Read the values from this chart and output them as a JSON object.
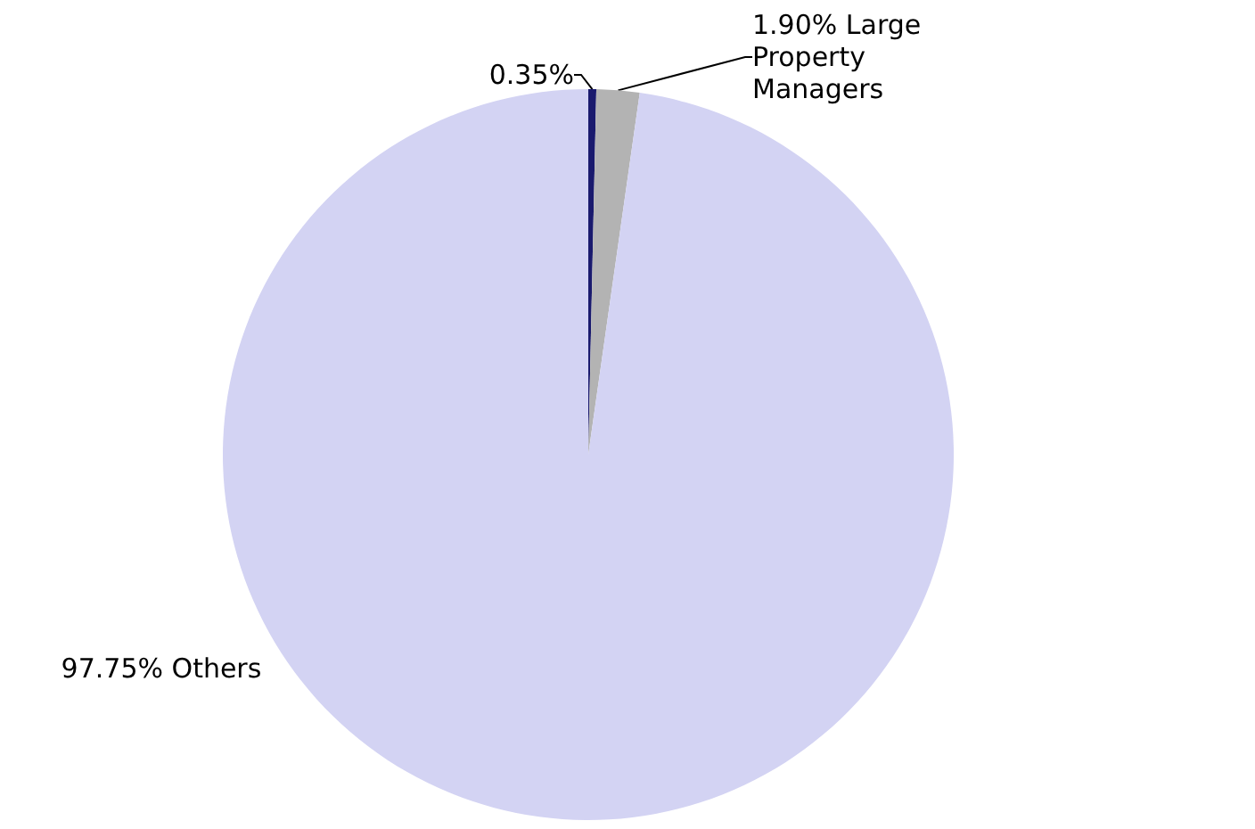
{
  "chart_data": {
    "type": "pie",
    "categories": [
      null,
      "Large Property Managers",
      "Others"
    ],
    "values": [
      0.35,
      1.9,
      97.75
    ],
    "value_labels": [
      "0.35%",
      "1.90%",
      "97.75%"
    ],
    "colors": [
      "#1a1a6e",
      "#b3b3b3",
      "#d3d3f3"
    ]
  }
}
